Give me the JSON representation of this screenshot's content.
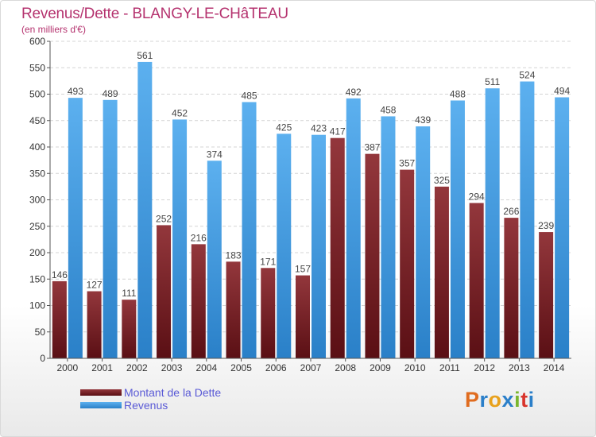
{
  "title": "Revenus/Dette - BLANGY-LE-CHâTEAU",
  "subtitle": "(en milliers d'€)",
  "logo": {
    "letters": [
      "P",
      "r",
      "o",
      "x",
      "i",
      "t",
      "i"
    ],
    "colors": [
      "#e06c1f",
      "#2b7fc9",
      "#e8a11c",
      "#2b7fc9",
      "#7ab62e",
      "#d8342c",
      "#2b7fc9"
    ]
  },
  "chart_data": {
    "type": "bar",
    "categories": [
      "2000",
      "2001",
      "2002",
      "2003",
      "2004",
      "2005",
      "2006",
      "2007",
      "2008",
      "2009",
      "2010",
      "2011",
      "2012",
      "2013",
      "2014"
    ],
    "series": [
      {
        "name": "Montant de la Dette",
        "color": "#7a2228",
        "values": [
          146,
          127,
          111,
          252,
          216,
          183,
          171,
          157,
          417,
          387,
          357,
          325,
          294,
          266,
          239
        ]
      },
      {
        "name": "Revenus",
        "color": "#3d9ae0",
        "values": [
          493,
          489,
          561,
          452,
          374,
          485,
          425,
          423,
          492,
          458,
          439,
          488,
          511,
          524,
          494
        ]
      }
    ],
    "ylim": [
      0,
      600
    ],
    "yticks": [
      "0",
      "50",
      "100",
      "150",
      "200",
      "250",
      "300",
      "350",
      "400",
      "450",
      "500",
      "550",
      "600"
    ],
    "grid": true,
    "legend_position": "bottom-left"
  }
}
